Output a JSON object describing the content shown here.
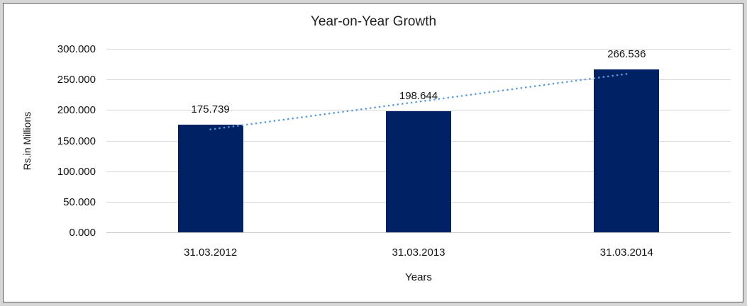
{
  "chart_data": {
    "type": "bar",
    "title": "Year-on-Year Growth",
    "xlabel": "Years",
    "ylabel": "Rs.in Millions",
    "categories": [
      "31.03.2012",
      "31.03.2013",
      "31.03.2014"
    ],
    "series": [
      {
        "name": "Rs.in Millions",
        "values": [
          175.739,
          198.644,
          266.536
        ]
      }
    ],
    "data_labels": [
      "175.739",
      "198.644",
      "266.536"
    ],
    "y_ticks": [
      "300.000",
      "250.000",
      "200.000",
      "150.000",
      "100.000",
      "50.000",
      "0.000"
    ],
    "ylim": [
      0,
      300
    ],
    "y_step": 50,
    "grid": true,
    "legend": "none",
    "trendline": {
      "type": "linear",
      "style": "dotted"
    },
    "colors": {
      "bar": "#002265",
      "trendline": "#5B9BD5",
      "gridline": "#D9D9D9",
      "baseline": "#C9C9C9",
      "text": "#111111",
      "frame_border": "#595959",
      "outer_margin": "#D6D6D6",
      "background": "#FFFFFF"
    }
  }
}
